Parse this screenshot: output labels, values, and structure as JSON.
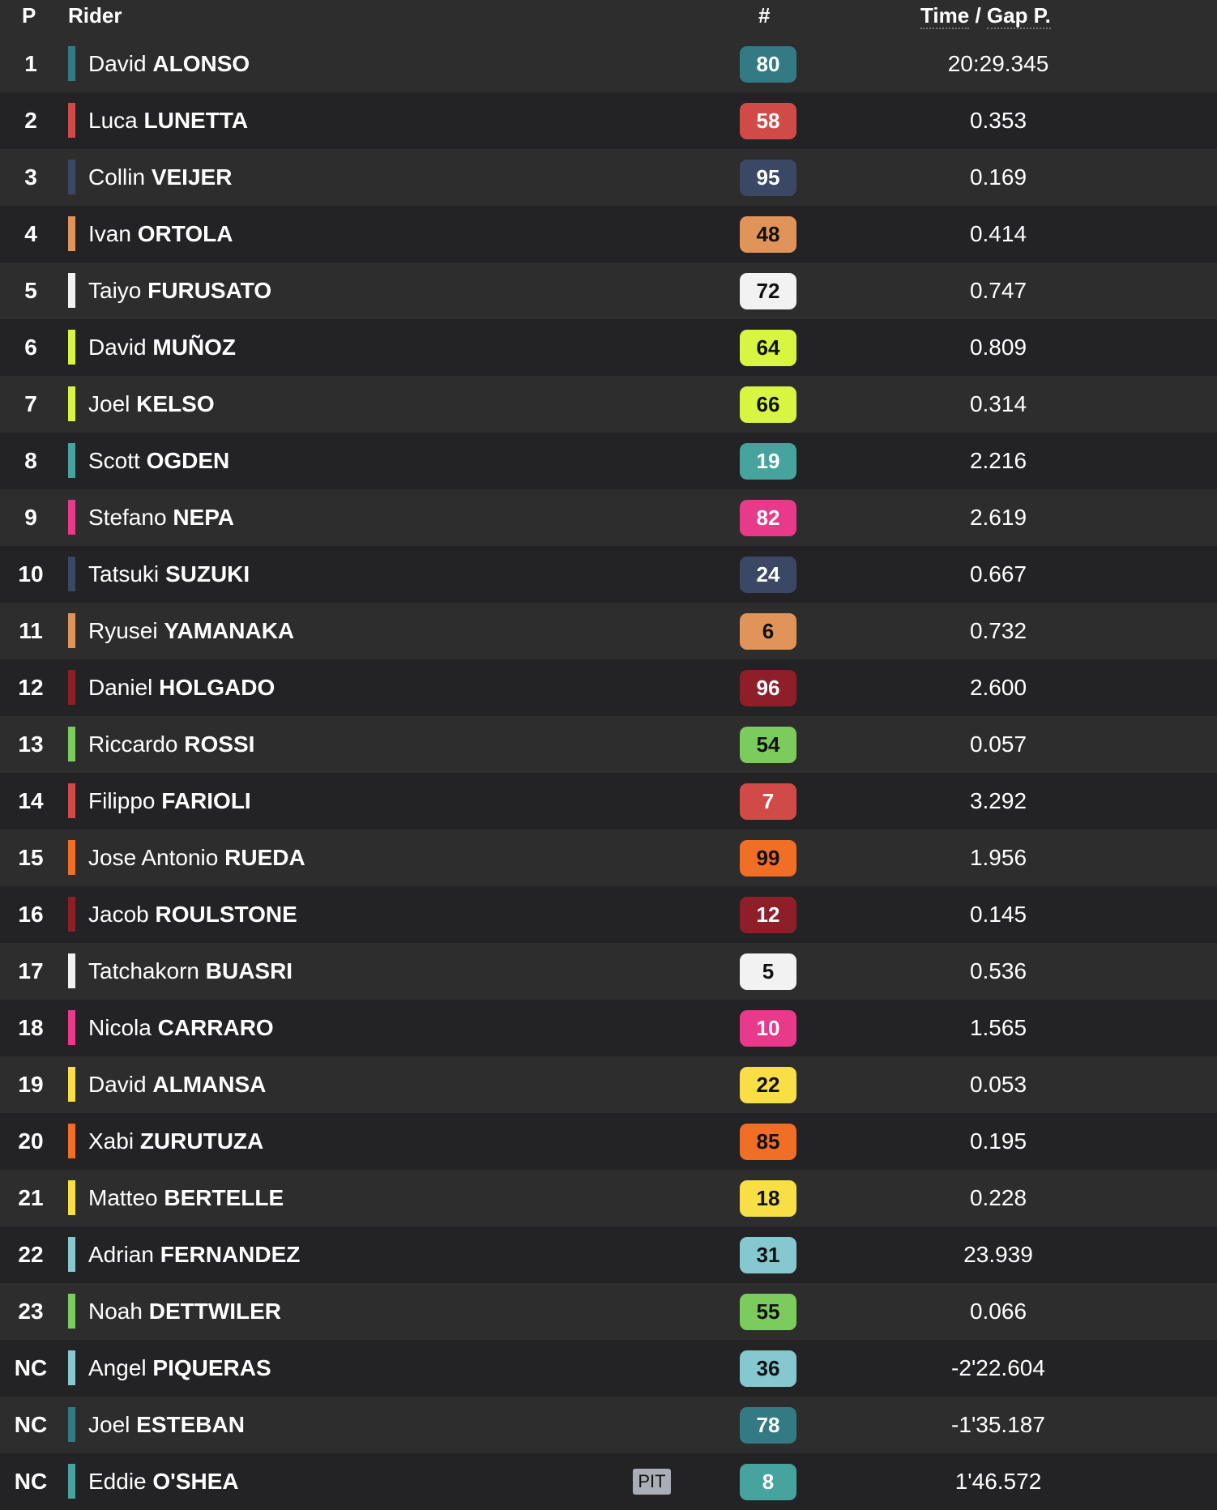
{
  "header": {
    "p": "P",
    "rider": "Rider",
    "number": "#",
    "time": "Time",
    "sep": " / ",
    "gap": "Gap P."
  },
  "rows": [
    {
      "pos": "1",
      "first": "David",
      "last": "ALONSO",
      "num": "80",
      "color": "#347a84",
      "text": "#fff",
      "time": "20:29.345"
    },
    {
      "pos": "2",
      "first": "Luca",
      "last": "LUNETTA",
      "num": "58",
      "color": "#d04a47",
      "text": "#fff",
      "time": "0.353"
    },
    {
      "pos": "3",
      "first": "Collin",
      "last": "VEIJER",
      "num": "95",
      "color": "#3a4866",
      "text": "#fff",
      "time": "0.169"
    },
    {
      "pos": "4",
      "first": "Ivan",
      "last": "ORTOLA",
      "num": "48",
      "color": "#e09459",
      "text": "#111",
      "time": "0.414"
    },
    {
      "pos": "5",
      "first": "Taiyo",
      "last": "FURUSATO",
      "num": "72",
      "color": "#f2f2f2",
      "text": "#111",
      "time": "0.747"
    },
    {
      "pos": "6",
      "first": "David",
      "last": "MUÑOZ",
      "num": "64",
      "color": "#d8f542",
      "text": "#111",
      "time": "0.809"
    },
    {
      "pos": "7",
      "first": "Joel",
      "last": "KELSO",
      "num": "66",
      "color": "#d8f542",
      "text": "#111",
      "time": "0.314"
    },
    {
      "pos": "8",
      "first": "Scott",
      "last": "OGDEN",
      "num": "19",
      "color": "#46a39e",
      "text": "#fff",
      "time": "2.216"
    },
    {
      "pos": "9",
      "first": "Stefano",
      "last": "NEPA",
      "num": "82",
      "color": "#e8398b",
      "text": "#fff",
      "time": "2.619"
    },
    {
      "pos": "10",
      "first": "Tatsuki",
      "last": "SUZUKI",
      "num": "24",
      "color": "#3a4866",
      "text": "#fff",
      "time": "0.667"
    },
    {
      "pos": "11",
      "first": "Ryusei",
      "last": "YAMANAKA",
      "num": "6",
      "color": "#e09459",
      "text": "#111",
      "time": "0.732"
    },
    {
      "pos": "12",
      "first": "Daniel",
      "last": "HOLGADO",
      "num": "96",
      "color": "#8e1f29",
      "text": "#fff",
      "time": "2.600"
    },
    {
      "pos": "13",
      "first": "Riccardo",
      "last": "ROSSI",
      "num": "54",
      "color": "#7ccb5d",
      "text": "#111",
      "time": "0.057"
    },
    {
      "pos": "14",
      "first": "Filippo",
      "last": "FARIOLI",
      "num": "7",
      "color": "#d04a47",
      "text": "#fff",
      "time": "3.292"
    },
    {
      "pos": "15",
      "first": "Jose Antonio",
      "last": "RUEDA",
      "num": "99",
      "color": "#f06e26",
      "text": "#111",
      "time": "1.956"
    },
    {
      "pos": "16",
      "first": "Jacob",
      "last": "ROULSTONE",
      "num": "12",
      "color": "#8e1f29",
      "text": "#fff",
      "time": "0.145"
    },
    {
      "pos": "17",
      "first": "Tatchakorn",
      "last": "BUASRI",
      "num": "5",
      "color": "#f2f2f2",
      "text": "#111",
      "time": "0.536"
    },
    {
      "pos": "18",
      "first": "Nicola",
      "last": "CARRARO",
      "num": "10",
      "color": "#e8398b",
      "text": "#fff",
      "time": "1.565"
    },
    {
      "pos": "19",
      "first": "David",
      "last": "ALMANSA",
      "num": "22",
      "color": "#f7df45",
      "text": "#111",
      "time": "0.053"
    },
    {
      "pos": "20",
      "first": "Xabi",
      "last": "ZURUTUZA",
      "num": "85",
      "color": "#f06e26",
      "text": "#111",
      "time": "0.195"
    },
    {
      "pos": "21",
      "first": "Matteo",
      "last": "BERTELLE",
      "num": "18",
      "color": "#f7df45",
      "text": "#111",
      "time": "0.228"
    },
    {
      "pos": "22",
      "first": "Adrian",
      "last": "FERNANDEZ",
      "num": "31",
      "color": "#85c8cf",
      "text": "#111",
      "time": "23.939"
    },
    {
      "pos": "23",
      "first": "Noah",
      "last": "DETTWILER",
      "num": "55",
      "color": "#7ccb5d",
      "text": "#111",
      "time": "0.066"
    },
    {
      "pos": "NC",
      "first": "Angel",
      "last": "PIQUERAS",
      "num": "36",
      "color": "#85c8cf",
      "text": "#111",
      "time": "-2'22.604"
    },
    {
      "pos": "NC",
      "first": "Joel",
      "last": "ESTEBAN",
      "num": "78",
      "color": "#347a84",
      "text": "#fff",
      "time": "-1'35.187"
    },
    {
      "pos": "NC",
      "first": "Eddie",
      "last": "O'SHEA",
      "num": "8",
      "color": "#46a39e",
      "text": "#fff",
      "time": "1'46.572",
      "pit": "PIT"
    }
  ]
}
